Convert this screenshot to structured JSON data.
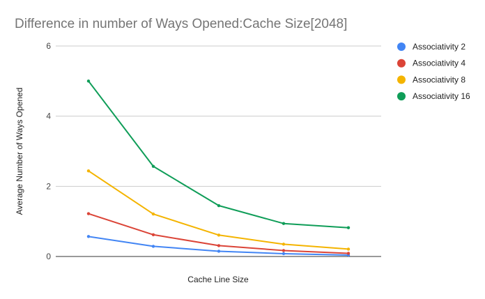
{
  "chart_data": {
    "type": "line",
    "title": "Difference in number of Ways Opened:Cache Size[2048]",
    "xlabel": "Cache Line Size",
    "ylabel": "Average Number of Ways Opened",
    "ylim": [
      0,
      6
    ],
    "yticks": [
      0,
      2,
      4,
      6
    ],
    "categories": [
      "",
      "",
      "",
      "",
      ""
    ],
    "grid": true,
    "legend_position": "right",
    "series": [
      {
        "name": "Associativity 2",
        "color": "#4285f4",
        "values": [
          0.57,
          0.29,
          0.15,
          0.08,
          0.04
        ]
      },
      {
        "name": "Associativity 4",
        "color": "#db4437",
        "values": [
          1.22,
          0.62,
          0.31,
          0.17,
          0.09
        ]
      },
      {
        "name": "Associativity 8",
        "color": "#f4b400",
        "values": [
          2.44,
          1.21,
          0.61,
          0.35,
          0.21
        ]
      },
      {
        "name": "Associativity 16",
        "color": "#0f9d58",
        "values": [
          5.0,
          2.57,
          1.45,
          0.94,
          0.82
        ]
      }
    ]
  }
}
